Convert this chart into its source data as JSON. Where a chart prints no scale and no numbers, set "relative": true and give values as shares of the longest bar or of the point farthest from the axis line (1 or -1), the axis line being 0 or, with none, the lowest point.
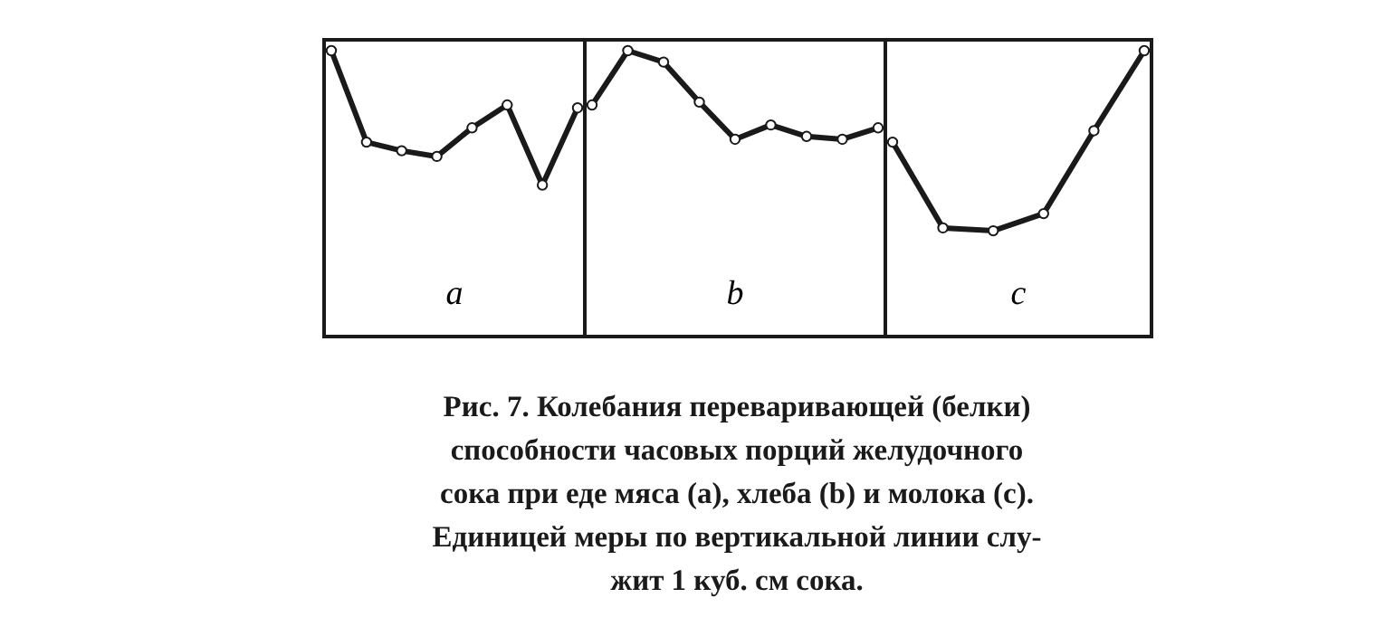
{
  "chart_data": [
    {
      "type": "line",
      "xlabel": "a",
      "relative": true,
      "categories": [
        null,
        null,
        null,
        null,
        null,
        null,
        null,
        null
      ],
      "marker": "circle",
      "series": [
        {
          "color": "#1a1a1a",
          "values": [
            1,
            0.68,
            0.65,
            0.63,
            0.73,
            0.81,
            0.53,
            0.8
          ]
        }
      ],
      "annotations": [
        "Рис. 7. Колебания переваривающей (белки)\nспособности часовых порций желудочного\nсока при еде мяса (a), хлеба (b) и молока (c).\nЕдиницей меры по вертикальной линии слу-\nжит 1 куб. см сока."
      ]
    },
    {
      "type": "line",
      "xlabel": "b",
      "relative": true,
      "categories": [
        null,
        null,
        null,
        null,
        null,
        null,
        null,
        null,
        null
      ],
      "marker": "circle",
      "series": [
        {
          "color": "#1a1a1a",
          "values": [
            0.81,
            1,
            0.96,
            0.82,
            0.69,
            0.74,
            0.7,
            0.69,
            0.73
          ]
        }
      ]
    },
    {
      "type": "line",
      "xlabel": "c",
      "relative": true,
      "categories": [
        null,
        null,
        null,
        null,
        null,
        null
      ],
      "marker": "circle",
      "series": [
        {
          "color": "#1a1a1a",
          "values": [
            0.68,
            0.38,
            0.37,
            0.43,
            0.72,
            1
          ]
        }
      ]
    }
  ]
}
